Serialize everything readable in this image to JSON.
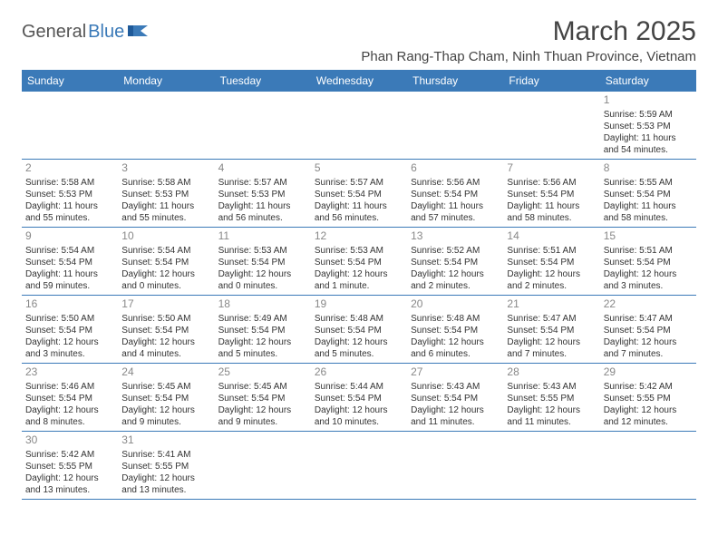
{
  "logo": {
    "general": "General",
    "blue": "Blue"
  },
  "title": "March 2025",
  "location": "Phan Rang-Thap Cham, Ninh Thuan Province, Vietnam",
  "colors": {
    "header_bg": "#3b7ab8",
    "header_text": "#ffffff",
    "daynum": "#888888",
    "text": "#333333",
    "border": "#3b7ab8"
  },
  "weekdays": [
    "Sunday",
    "Monday",
    "Tuesday",
    "Wednesday",
    "Thursday",
    "Friday",
    "Saturday"
  ],
  "weeks": [
    [
      null,
      null,
      null,
      null,
      null,
      null,
      {
        "n": "1",
        "sunrise": "Sunrise: 5:59 AM",
        "sunset": "Sunset: 5:53 PM",
        "daylight": "Daylight: 11 hours and 54 minutes."
      }
    ],
    [
      {
        "n": "2",
        "sunrise": "Sunrise: 5:58 AM",
        "sunset": "Sunset: 5:53 PM",
        "daylight": "Daylight: 11 hours and 55 minutes."
      },
      {
        "n": "3",
        "sunrise": "Sunrise: 5:58 AM",
        "sunset": "Sunset: 5:53 PM",
        "daylight": "Daylight: 11 hours and 55 minutes."
      },
      {
        "n": "4",
        "sunrise": "Sunrise: 5:57 AM",
        "sunset": "Sunset: 5:53 PM",
        "daylight": "Daylight: 11 hours and 56 minutes."
      },
      {
        "n": "5",
        "sunrise": "Sunrise: 5:57 AM",
        "sunset": "Sunset: 5:54 PM",
        "daylight": "Daylight: 11 hours and 56 minutes."
      },
      {
        "n": "6",
        "sunrise": "Sunrise: 5:56 AM",
        "sunset": "Sunset: 5:54 PM",
        "daylight": "Daylight: 11 hours and 57 minutes."
      },
      {
        "n": "7",
        "sunrise": "Sunrise: 5:56 AM",
        "sunset": "Sunset: 5:54 PM",
        "daylight": "Daylight: 11 hours and 58 minutes."
      },
      {
        "n": "8",
        "sunrise": "Sunrise: 5:55 AM",
        "sunset": "Sunset: 5:54 PM",
        "daylight": "Daylight: 11 hours and 58 minutes."
      }
    ],
    [
      {
        "n": "9",
        "sunrise": "Sunrise: 5:54 AM",
        "sunset": "Sunset: 5:54 PM",
        "daylight": "Daylight: 11 hours and 59 minutes."
      },
      {
        "n": "10",
        "sunrise": "Sunrise: 5:54 AM",
        "sunset": "Sunset: 5:54 PM",
        "daylight": "Daylight: 12 hours and 0 minutes."
      },
      {
        "n": "11",
        "sunrise": "Sunrise: 5:53 AM",
        "sunset": "Sunset: 5:54 PM",
        "daylight": "Daylight: 12 hours and 0 minutes."
      },
      {
        "n": "12",
        "sunrise": "Sunrise: 5:53 AM",
        "sunset": "Sunset: 5:54 PM",
        "daylight": "Daylight: 12 hours and 1 minute."
      },
      {
        "n": "13",
        "sunrise": "Sunrise: 5:52 AM",
        "sunset": "Sunset: 5:54 PM",
        "daylight": "Daylight: 12 hours and 2 minutes."
      },
      {
        "n": "14",
        "sunrise": "Sunrise: 5:51 AM",
        "sunset": "Sunset: 5:54 PM",
        "daylight": "Daylight: 12 hours and 2 minutes."
      },
      {
        "n": "15",
        "sunrise": "Sunrise: 5:51 AM",
        "sunset": "Sunset: 5:54 PM",
        "daylight": "Daylight: 12 hours and 3 minutes."
      }
    ],
    [
      {
        "n": "16",
        "sunrise": "Sunrise: 5:50 AM",
        "sunset": "Sunset: 5:54 PM",
        "daylight": "Daylight: 12 hours and 3 minutes."
      },
      {
        "n": "17",
        "sunrise": "Sunrise: 5:50 AM",
        "sunset": "Sunset: 5:54 PM",
        "daylight": "Daylight: 12 hours and 4 minutes."
      },
      {
        "n": "18",
        "sunrise": "Sunrise: 5:49 AM",
        "sunset": "Sunset: 5:54 PM",
        "daylight": "Daylight: 12 hours and 5 minutes."
      },
      {
        "n": "19",
        "sunrise": "Sunrise: 5:48 AM",
        "sunset": "Sunset: 5:54 PM",
        "daylight": "Daylight: 12 hours and 5 minutes."
      },
      {
        "n": "20",
        "sunrise": "Sunrise: 5:48 AM",
        "sunset": "Sunset: 5:54 PM",
        "daylight": "Daylight: 12 hours and 6 minutes."
      },
      {
        "n": "21",
        "sunrise": "Sunrise: 5:47 AM",
        "sunset": "Sunset: 5:54 PM",
        "daylight": "Daylight: 12 hours and 7 minutes."
      },
      {
        "n": "22",
        "sunrise": "Sunrise: 5:47 AM",
        "sunset": "Sunset: 5:54 PM",
        "daylight": "Daylight: 12 hours and 7 minutes."
      }
    ],
    [
      {
        "n": "23",
        "sunrise": "Sunrise: 5:46 AM",
        "sunset": "Sunset: 5:54 PM",
        "daylight": "Daylight: 12 hours and 8 minutes."
      },
      {
        "n": "24",
        "sunrise": "Sunrise: 5:45 AM",
        "sunset": "Sunset: 5:54 PM",
        "daylight": "Daylight: 12 hours and 9 minutes."
      },
      {
        "n": "25",
        "sunrise": "Sunrise: 5:45 AM",
        "sunset": "Sunset: 5:54 PM",
        "daylight": "Daylight: 12 hours and 9 minutes."
      },
      {
        "n": "26",
        "sunrise": "Sunrise: 5:44 AM",
        "sunset": "Sunset: 5:54 PM",
        "daylight": "Daylight: 12 hours and 10 minutes."
      },
      {
        "n": "27",
        "sunrise": "Sunrise: 5:43 AM",
        "sunset": "Sunset: 5:54 PM",
        "daylight": "Daylight: 12 hours and 11 minutes."
      },
      {
        "n": "28",
        "sunrise": "Sunrise: 5:43 AM",
        "sunset": "Sunset: 5:55 PM",
        "daylight": "Daylight: 12 hours and 11 minutes."
      },
      {
        "n": "29",
        "sunrise": "Sunrise: 5:42 AM",
        "sunset": "Sunset: 5:55 PM",
        "daylight": "Daylight: 12 hours and 12 minutes."
      }
    ],
    [
      {
        "n": "30",
        "sunrise": "Sunrise: 5:42 AM",
        "sunset": "Sunset: 5:55 PM",
        "daylight": "Daylight: 12 hours and 13 minutes."
      },
      {
        "n": "31",
        "sunrise": "Sunrise: 5:41 AM",
        "sunset": "Sunset: 5:55 PM",
        "daylight": "Daylight: 12 hours and 13 minutes."
      },
      null,
      null,
      null,
      null,
      null
    ]
  ]
}
